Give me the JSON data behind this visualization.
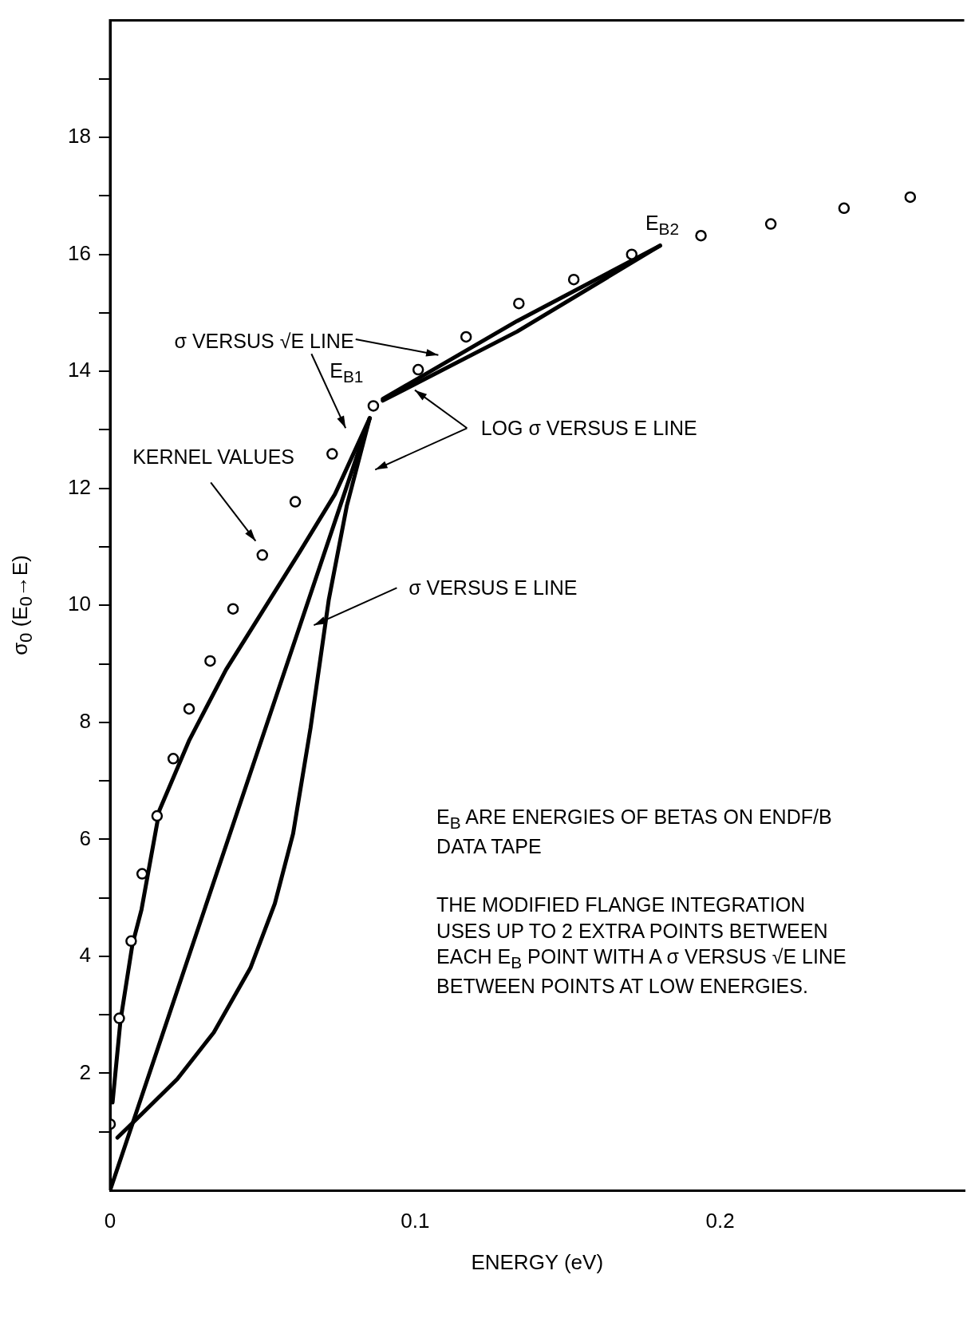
{
  "chart_data": {
    "type": "scatter",
    "xlabel": "ENERGY (eV)",
    "ylabel": "σ$_{0}$ (E$_{0}$→E)",
    "xlim": [
      0,
      0.28
    ],
    "ylim": [
      0,
      20
    ],
    "xticks": [
      {
        "value": 0,
        "label": "0"
      },
      {
        "value": 0.1,
        "label": "0.1"
      },
      {
        "value": 0.2,
        "label": "0.2"
      }
    ],
    "yticks": [
      {
        "value": 1,
        "label": null
      },
      2,
      {
        "value": 3,
        "label": null
      },
      4,
      {
        "value": 5,
        "label": null
      },
      6,
      {
        "value": 7,
        "label": null
      },
      8,
      {
        "value": 9,
        "label": null
      },
      10,
      {
        "value": 11,
        "label": null
      },
      12,
      {
        "value": 13,
        "label": null
      },
      14,
      {
        "value": 15,
        "label": null
      },
      16,
      {
        "value": 17,
        "label": null
      },
      18,
      {
        "value": 19,
        "label": null
      }
    ],
    "grid": false,
    "legend": false,
    "line_style": "solid",
    "series": [
      {
        "type": "scatter",
        "marker": "circle",
        "color": "#000000",
        "x": [
          0,
          0.003,
          0.0069,
          0.0105,
          0.0154,
          0.0207,
          0.0259,
          0.0328,
          0.0403,
          0.0499,
          0.0607,
          0.0728,
          0.0863,
          0.101,
          0.1167,
          0.134,
          0.152,
          0.171,
          0.1937,
          0.2166,
          0.2406,
          0.2623
        ],
        "values": [
          1.13,
          2.94,
          4.26,
          5.41,
          6.4,
          7.38,
          8.23,
          9.05,
          9.94,
          10.86,
          11.77,
          12.59,
          13.41,
          14.03,
          14.59,
          15.16,
          15.57,
          16.0,
          16.32,
          16.52,
          16.79,
          16.98
        ]
      },
      {
        "type": "line",
        "marker": "none",
        "color": "#000000",
        "x": [
          0.0008,
          0.0034,
          0.0073,
          0.0103,
          0.0162,
          0.026,
          0.038,
          0.05,
          0.062,
          0.0737,
          0.0851
        ],
        "values": [
          1.5,
          2.9,
          4.2,
          4.8,
          6.5,
          7.7,
          8.9,
          9.9,
          10.9,
          11.9,
          13.2
        ]
      },
      {
        "type": "line",
        "marker": "none",
        "color": "#000000",
        "x": [
          0,
          0.0851
        ],
        "values": [
          0,
          13.2
        ]
      },
      {
        "type": "line",
        "marker": "none",
        "color": "#000000",
        "x": [
          0.0024,
          0.0103,
          0.022,
          0.034,
          0.046,
          0.054,
          0.06,
          0.0657,
          0.0717,
          0.0776,
          0.0851
        ],
        "values": [
          0.9,
          1.3,
          1.9,
          2.7,
          3.8,
          4.9,
          6.1,
          7.9,
          10.1,
          11.7,
          13.2
        ]
      },
      {
        "type": "line",
        "marker": "none",
        "color": "#000000",
        "x": [
          0.0894,
          0.1334,
          0.1803
        ],
        "values": [
          13.53,
          14.86,
          16.15
        ]
      },
      {
        "type": "line",
        "marker": "none",
        "color": "#000000",
        "x": [
          0.0894,
          0.1334,
          0.1803
        ],
        "values": [
          13.5,
          14.68,
          16.15
        ]
      }
    ],
    "annotations": [
      "σ VERSUS √E LINE",
      "E$_{B1}$",
      "E$_{B2}$",
      "LOG σ VERSUS E LINE",
      "KERNEL VALUES",
      "σ VERSUS E LINE",
      "E$_{B}$ ARE ENERGIES OF BETAS ON ENDF/B DATA TAPE",
      "THE MODIFIED FLANGE INTEGRATION USES UP TO 2 EXTRA POINTS BETWEEN EACH E$_{B}$ POINT WITH A σ VERSUS √E LINE BETWEEN POINTS AT LOW ENERGIES."
    ]
  }
}
